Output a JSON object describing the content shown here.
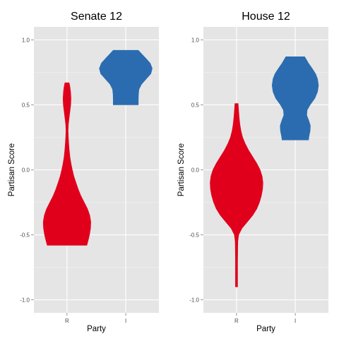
{
  "chart_data": [
    {
      "type": "violin",
      "title": "Senate 12",
      "xlabel": "Party",
      "ylabel": "Partisan Score",
      "categories": [
        "R",
        "I"
      ],
      "ylim": [
        -1.1,
        1.1
      ],
      "yticks": [
        -1.0,
        -0.5,
        0.0,
        0.5,
        1.0
      ],
      "ytick_labels": [
        "-1.0",
        "-0.5",
        "0.0",
        "0.5",
        "1.0"
      ],
      "grid": true,
      "series": [
        {
          "category": "R",
          "color": "#e0001b",
          "min": -0.58,
          "max": 0.67,
          "profile": [
            [
              -0.58,
              0.15
            ],
            [
              -0.55,
              0.158
            ],
            [
              -0.5,
              0.17
            ],
            [
              -0.45,
              0.178
            ],
            [
              -0.4,
              0.18
            ],
            [
              -0.35,
              0.172
            ],
            [
              -0.3,
              0.155
            ],
            [
              -0.25,
              0.13
            ],
            [
              -0.2,
              0.105
            ],
            [
              -0.15,
              0.085
            ],
            [
              -0.1,
              0.068
            ],
            [
              -0.05,
              0.052
            ],
            [
              0.0,
              0.04
            ],
            [
              0.05,
              0.03
            ],
            [
              0.1,
              0.022
            ],
            [
              0.15,
              0.017
            ],
            [
              0.2,
              0.013
            ],
            [
              0.25,
              0.01
            ],
            [
              0.3,
              0.008
            ],
            [
              0.35,
              0.01
            ],
            [
              0.4,
              0.016
            ],
            [
              0.45,
              0.022
            ],
            [
              0.5,
              0.028
            ],
            [
              0.55,
              0.03
            ],
            [
              0.6,
              0.027
            ],
            [
              0.64,
              0.022
            ],
            [
              0.67,
              0.016
            ]
          ]
        },
        {
          "category": "I",
          "color": "#2b6cb0",
          "min": 0.5,
          "max": 0.92,
          "profile": [
            [
              0.5,
              0.095
            ],
            [
              0.54,
              0.095
            ],
            [
              0.58,
              0.096
            ],
            [
              0.62,
              0.1
            ],
            [
              0.66,
              0.12
            ],
            [
              0.7,
              0.155
            ],
            [
              0.74,
              0.19
            ],
            [
              0.78,
              0.2
            ],
            [
              0.82,
              0.185
            ],
            [
              0.86,
              0.15
            ],
            [
              0.89,
              0.122
            ],
            [
              0.92,
              0.095
            ]
          ]
        }
      ]
    },
    {
      "type": "violin",
      "title": "House 12",
      "xlabel": "Party",
      "ylabel": "Partisan Score",
      "categories": [
        "R",
        "I"
      ],
      "ylim": [
        -1.1,
        1.1
      ],
      "yticks": [
        -1.0,
        -0.5,
        0.0,
        0.5,
        1.0
      ],
      "ytick_labels": [
        "-1.0",
        "-0.5",
        "0.0",
        "0.5",
        "1.0"
      ],
      "grid": true,
      "series": [
        {
          "category": "R",
          "color": "#e0001b",
          "min": -0.9,
          "max": 0.51,
          "profile": [
            [
              -0.9,
              0.008
            ],
            [
              -0.8,
              0.008
            ],
            [
              -0.7,
              0.008
            ],
            [
              -0.6,
              0.009
            ],
            [
              -0.55,
              0.01
            ],
            [
              -0.5,
              0.016
            ],
            [
              -0.45,
              0.04
            ],
            [
              -0.4,
              0.08
            ],
            [
              -0.35,
              0.12
            ],
            [
              -0.3,
              0.15
            ],
            [
              -0.25,
              0.17
            ],
            [
              -0.2,
              0.184
            ],
            [
              -0.15,
              0.193
            ],
            [
              -0.1,
              0.196
            ],
            [
              -0.05,
              0.19
            ],
            [
              0.0,
              0.175
            ],
            [
              0.05,
              0.15
            ],
            [
              0.1,
              0.12
            ],
            [
              0.15,
              0.09
            ],
            [
              0.2,
              0.065
            ],
            [
              0.25,
              0.045
            ],
            [
              0.3,
              0.033
            ],
            [
              0.35,
              0.025
            ],
            [
              0.4,
              0.02
            ],
            [
              0.45,
              0.016
            ],
            [
              0.51,
              0.012
            ]
          ]
        },
        {
          "category": "I",
          "color": "#2b6cb0",
          "min": 0.23,
          "max": 0.87,
          "profile": [
            [
              0.23,
              0.098
            ],
            [
              0.26,
              0.102
            ],
            [
              0.3,
              0.11
            ],
            [
              0.34,
              0.112
            ],
            [
              0.38,
              0.1
            ],
            [
              0.42,
              0.085
            ],
            [
              0.46,
              0.088
            ],
            [
              0.5,
              0.11
            ],
            [
              0.55,
              0.145
            ],
            [
              0.6,
              0.165
            ],
            [
              0.65,
              0.172
            ],
            [
              0.7,
              0.165
            ],
            [
              0.74,
              0.15
            ],
            [
              0.78,
              0.125
            ],
            [
              0.82,
              0.098
            ],
            [
              0.87,
              0.07
            ]
          ]
        }
      ]
    }
  ]
}
